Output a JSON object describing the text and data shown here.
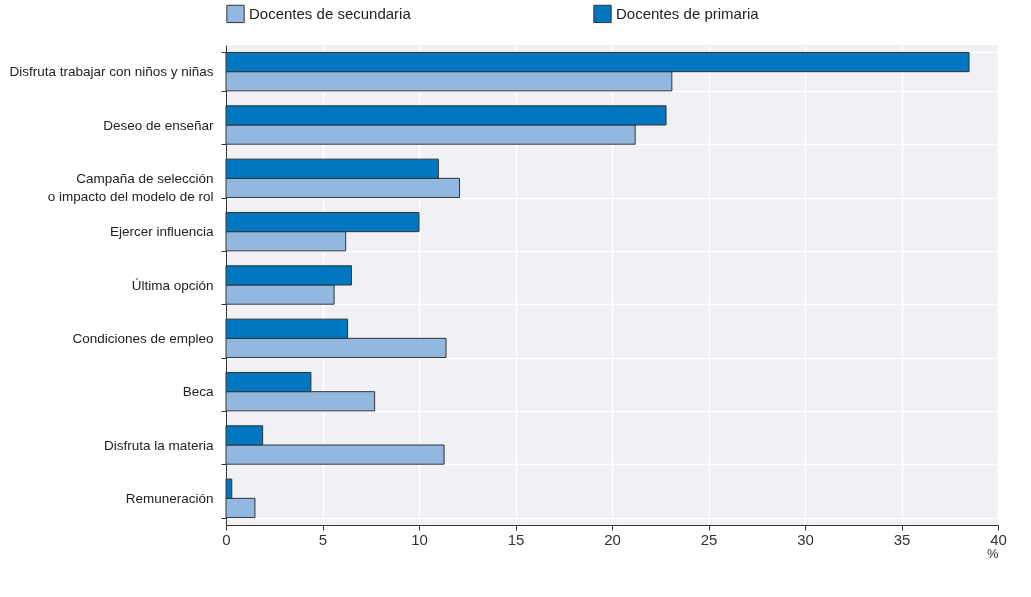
{
  "chart_data": {
    "type": "bar",
    "orientation": "horizontal",
    "xlabel": "%",
    "categories": [
      "Disfruta trabajar con niños y niñas",
      "Deseo de enseñar",
      "Campaña de selección\no impacto del modelo de rol",
      "Ejercer influencia",
      "Última opción",
      "Condiciones de empleo",
      "Beca",
      "Disfruta la materia",
      "Remuneración"
    ],
    "series": [
      {
        "name": "Docentes de secundaria",
        "color": "#93b8e0",
        "values": [
          23.1,
          21.2,
          12.1,
          6.2,
          5.6,
          11.4,
          7.7,
          11.3,
          1.5
        ]
      },
      {
        "name": "Docentes de primaria",
        "color": "#0077c0",
        "values": [
          38.5,
          22.8,
          11.0,
          10.0,
          6.5,
          6.3,
          4.4,
          1.9,
          0.3
        ]
      }
    ],
    "xlim": [
      0,
      40
    ],
    "xticks": [
      0,
      5,
      10,
      15,
      20,
      25,
      30,
      35,
      40
    ],
    "grid": true,
    "legend": "top"
  }
}
